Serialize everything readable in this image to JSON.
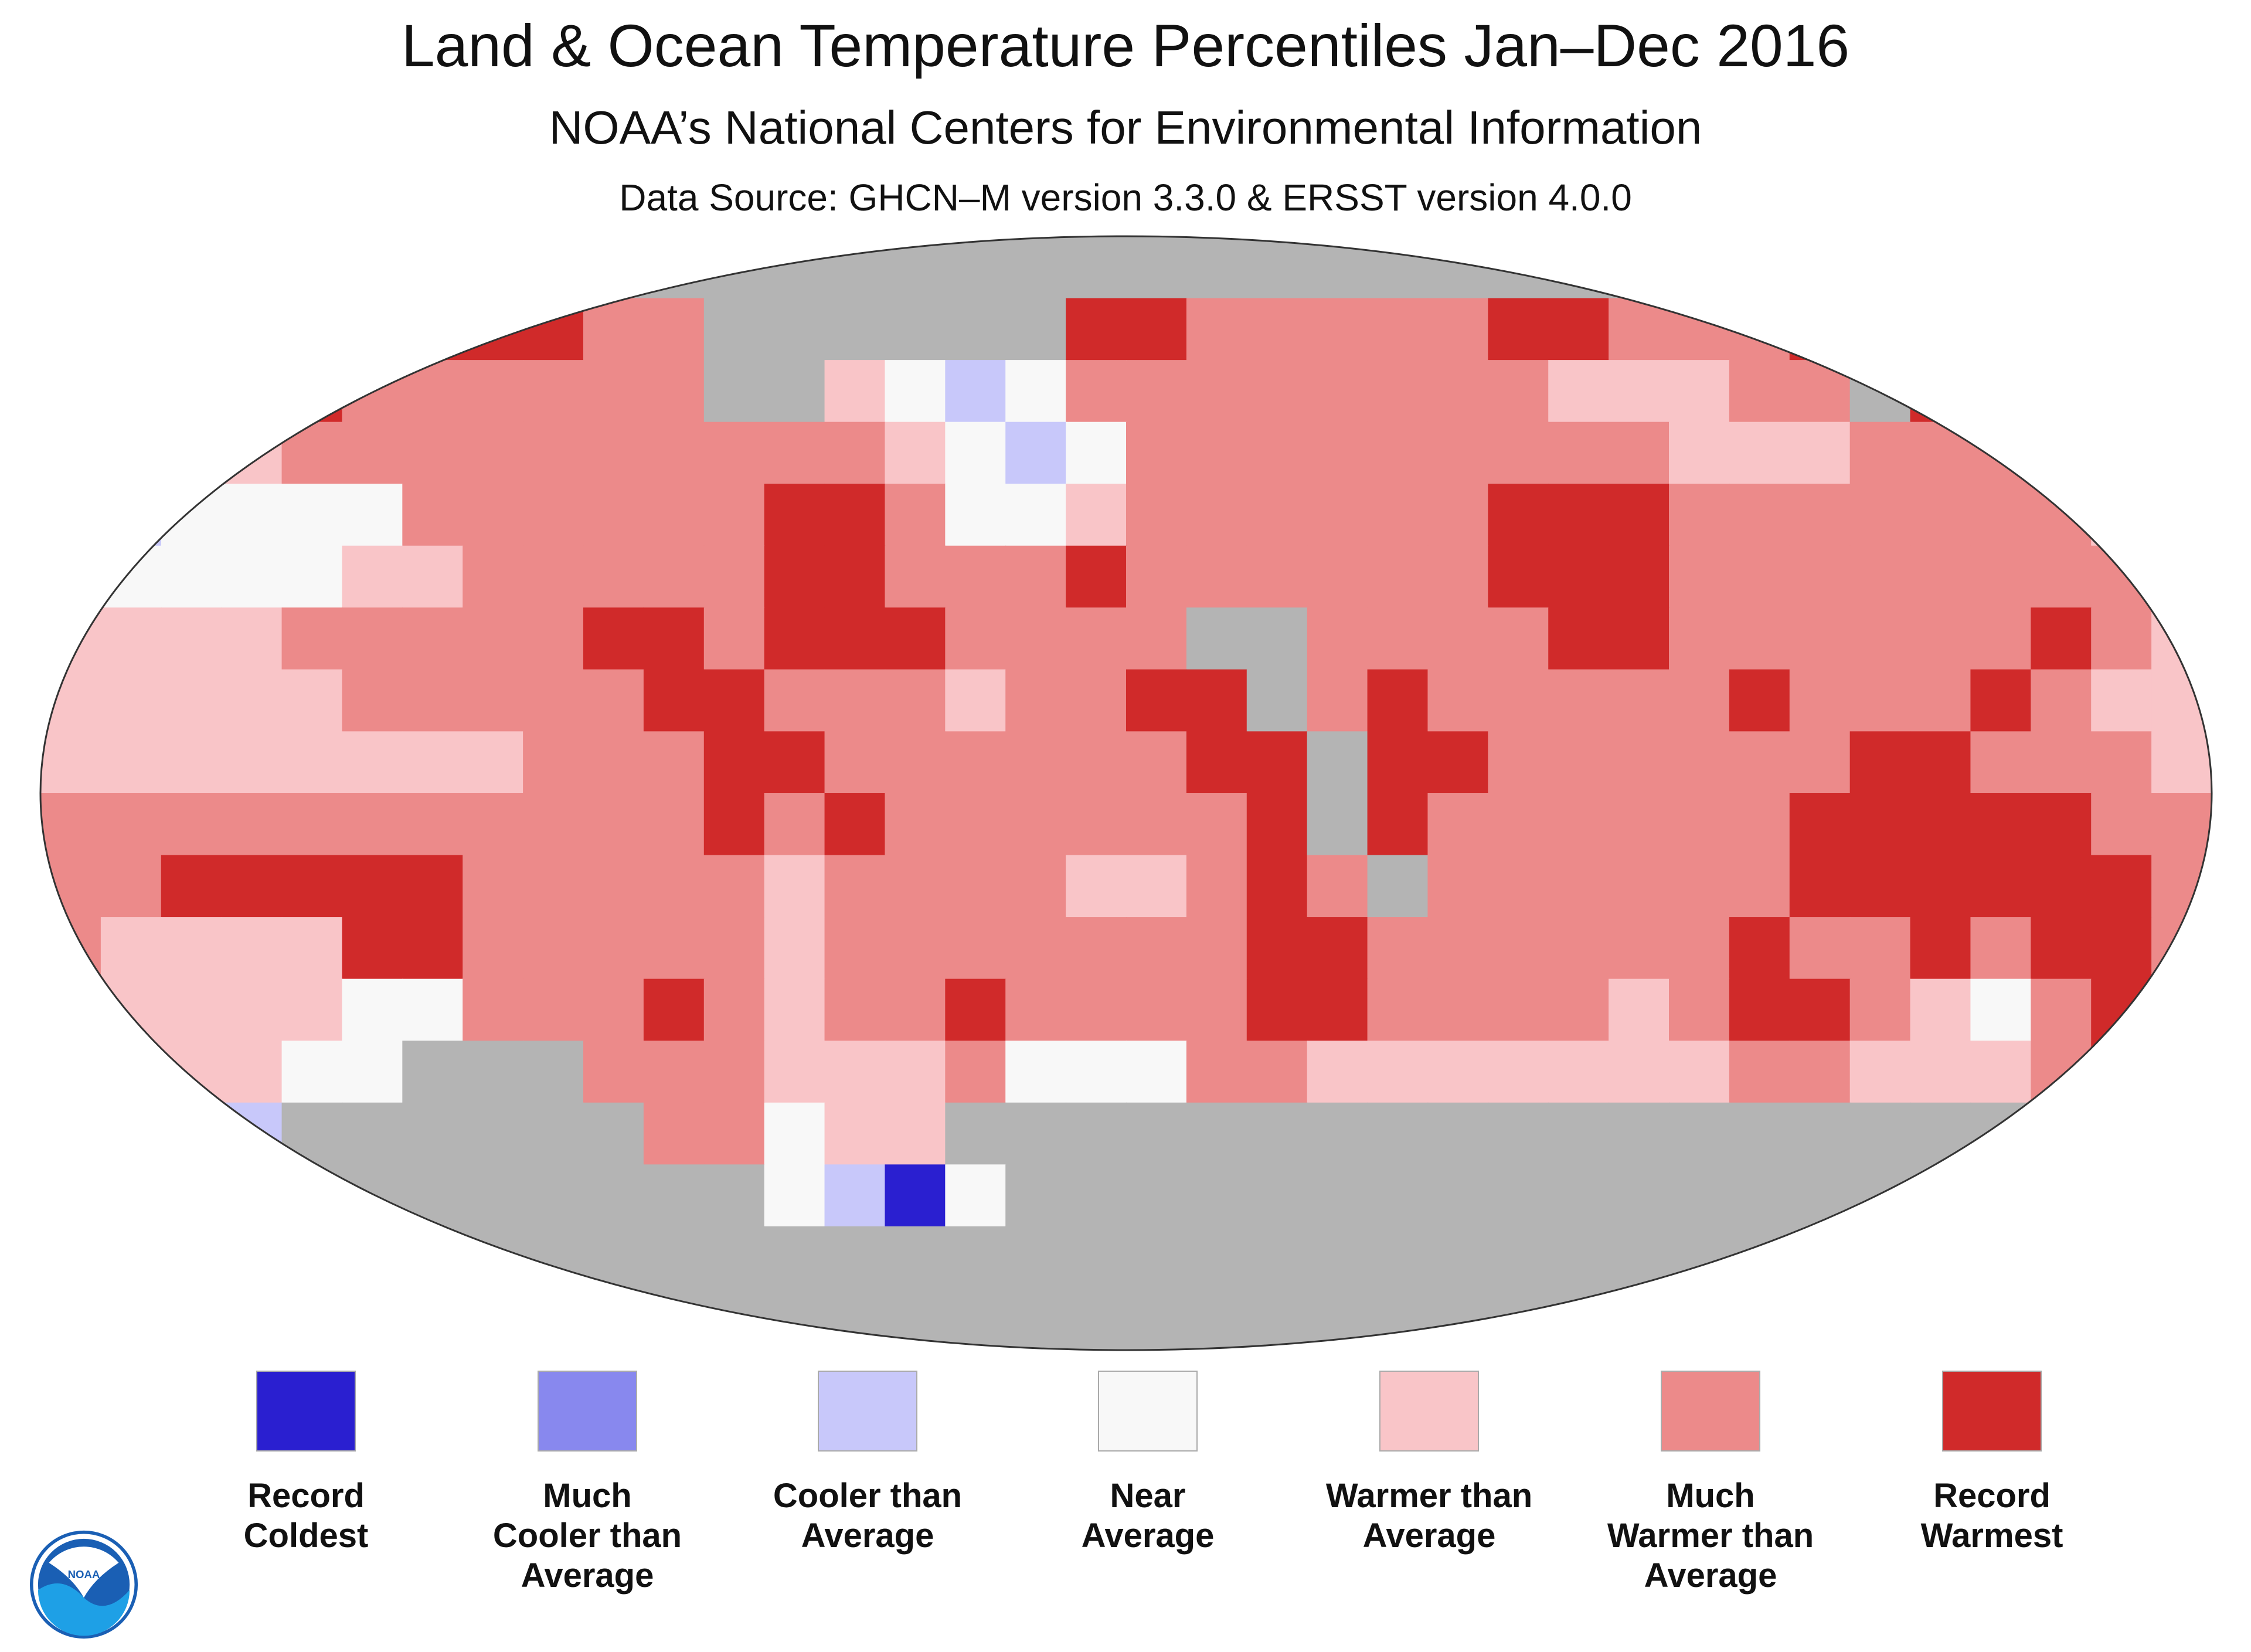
{
  "title": "Land & Ocean Temperature Percentiles Jan–Dec 2016",
  "subtitle": "NOAA’s National Centers for Environmental Information",
  "source": "Data Source: GHCN–M version 3.3.0 & ERSST version 4.0.0",
  "logo_text": "NOAA",
  "chart_data": {
    "type": "heatmap",
    "title": "Land & Ocean Temperature Percentiles Jan–Dec 2016",
    "resolution": "approx. 10° grid, rows from 90N to 90S, columns from 180W to 180E",
    "no_data_color": "#b4b4b4",
    "codes": {
      "g": "no data",
      "B": "Record Coldest",
      "b": "Much Cooler than Average",
      "c": "Cooler than Average",
      "w": "Near Average",
      "p": "Warmer than Average",
      "m": "Much Warmer than Average",
      "r": "Record Warmest"
    },
    "grid": [
      "gggggggggggggggggggggggggggggggggggg",
      "mmmmmrrrrmmggggggrrmmmmmrrmmmrrrmmmm",
      "pppprmmmmmmggpwcwmmmmmmmmpppmmgrrmmm",
      "wwwpmmmmmmmmmmpwcwmmmmmmmmmpppmmmwww",
      "wcwwwwmmmmmmrrmwwpmmmmmmrrrmmmmmmmpw",
      "mwwwwppmmmmmrrmmmrmmmmmmrrrmmmmmmmmp",
      "ppppmmmmmrrmrrrmmmmggmmmmrrmmmmmmrmp",
      "pppppmmmmmrrmmmpmmrrgmrmmmmmrmmmrmpp",
      "ppppppppmmmrrmmmmmmrrgrrmmmmmmrrmmmp",
      "mmmmmmmmmmmrmrmmmmmmrgrmmmmmmrrrrrmm",
      "mmrrrrrmmmmmpmmmmppmrmgmmmmmmrrrrrrm",
      "mpppprrmmmmmpmmmmmmmrrmmmmmmrmmrmrrm",
      "pppppwwmmmrmpmmrmmmmrrmmmmpmrrmpwmrm",
      "rpppwwgggmmmpppmwwwmmpppppppmmpppmrr",
      "gwwcggggggmmwppggggggggggggggggggggg",
      "ggggggggggggwcBwgggggggggggggggggggg",
      "gggggggggggggggggggggggggggggggggggg",
      "gggggggggggggggggggggggggggggggggggg"
    ],
    "legend": [
      {
        "code": "B",
        "label_lines": [
          "Record",
          "Coldest"
        ],
        "color": "#2a1fd0"
      },
      {
        "code": "b",
        "label_lines": [
          "Much",
          "Cooler than",
          "Average"
        ],
        "color": "#8888ee"
      },
      {
        "code": "c",
        "label_lines": [
          "Cooler than",
          "Average"
        ],
        "color": "#c8c8fa"
      },
      {
        "code": "w",
        "label_lines": [
          "Near",
          "Average"
        ],
        "color": "#f8f8f8"
      },
      {
        "code": "p",
        "label_lines": [
          "Warmer than",
          "Average"
        ],
        "color": "#f9c5c8"
      },
      {
        "code": "m",
        "label_lines": [
          "Much",
          "Warmer than",
          "Average"
        ],
        "color": "#ec8a8a"
      },
      {
        "code": "r",
        "label_lines": [
          "Record",
          "Warmest"
        ],
        "color": "#d02a2a"
      }
    ]
  }
}
